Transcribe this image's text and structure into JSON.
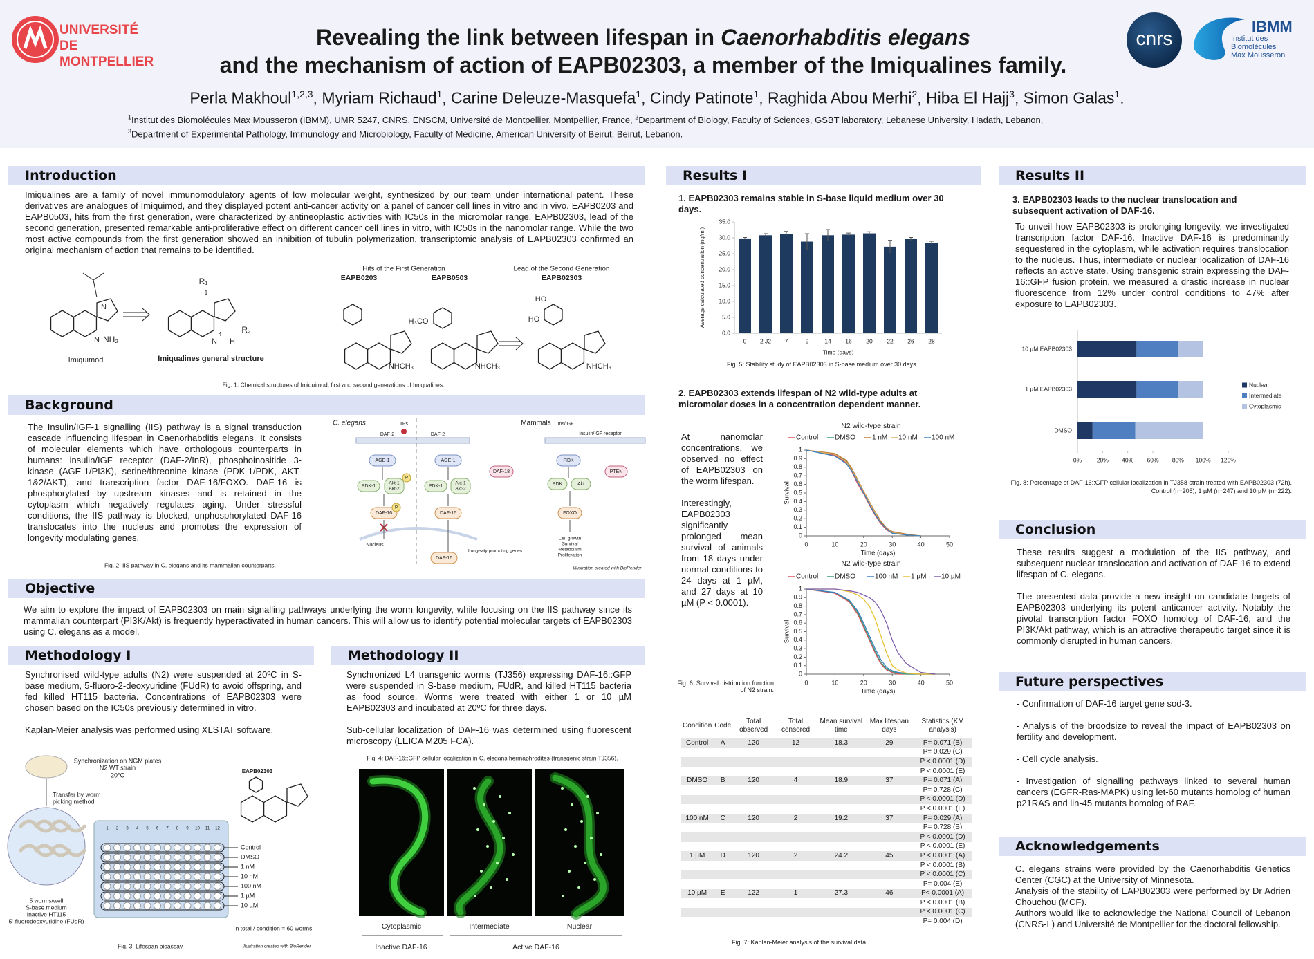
{
  "header": {
    "university": [
      "UNIVERSITÉ",
      "DE MONTPELLIER"
    ],
    "cnrs": "cnrs",
    "ibmm": "IBMM",
    "ibmm_lines": [
      "Institut des",
      "Biomolécules",
      "Max Mousseron"
    ],
    "title": {
      "line1": "Revealing the link between lifespan in",
      "line1_italic": "Caenorhabditis elegans",
      "line2": "and the mechanism of action of EAPB02303, a member of the Imiqualines family."
    },
    "authors": [
      {
        "name": "Perla Makhoul",
        "sup": "1,2,3"
      },
      {
        "name": ", Myriam Richaud",
        "sup": "1"
      },
      {
        "name": ", Carine Deleuze-Masquefa",
        "sup": "1"
      },
      {
        "name": ", Cindy Patinote",
        "sup": "1"
      },
      {
        "name": ", Raghida Abou Merhi",
        "sup": "2"
      },
      {
        "name": ", Hiba El Hajj",
        "sup": "3"
      },
      {
        "name": ", Simon Galas",
        "sup": "1"
      }
    ],
    "authors_end": ".",
    "affiliations": [
      {
        "sup": "1",
        "text": "Institut des Biomolécules Max Mousseron (IBMM), UMR 5247, CNRS, ENSCM, Université de Montpellier, Montpellier, France, "
      },
      {
        "sup": "2",
        "text": "Department of Biology, Faculty of Sciences, GSBT laboratory, Lebanese University, Hadath, Lebanon,"
      },
      {
        "sup": "3",
        "text": "Department of Experimental Pathology, Immunology and Microbiology, Faculty of Medicine, American University of Beirut, Beirut, Lebanon."
      }
    ]
  },
  "introduction": {
    "heading": "Introduction",
    "text": "Imiqualines are a family of novel immunomodulatory agents of low molecular weight, synthesized by our team under international patent. These derivatives are analogues of Imiquimod, and they displayed potent anti-cancer activity on a panel of cancer cell lines in vitro and in vivo. EAPB0203 and EAPB0503, hits from the first generation, were characterized by antineoplastic activities with IC50s in the micromolar range. EAPB02303, lead of the second generation, presented remarkable anti-proliferative effect on different cancer cell lines in vitro, with IC50s in the nanomolar range. While the two most active compounds from the first generation showed an inhibition of tubulin polymerization, transcriptomic analysis of EAPB02303 confirmed an original mechanism of action that remains to be identified."
  },
  "fig1": {
    "imiquimod": "Imiquimod",
    "general": "Imiqualines general structure",
    "first_gen": "Hits of the First Generation",
    "second_gen": "Lead of the Second Generation",
    "compounds": [
      "EAPB0203",
      "EAPB0503",
      "EAPB02303"
    ],
    "atoms": [
      "NH₂",
      "R₁",
      "R₂",
      "NHCH₃",
      "H₃CO",
      "HO",
      "N",
      "H",
      "4",
      "1"
    ],
    "caption": "Fig. 1: Chemical structures of Imiquimod, first and second generations of Imiqualines."
  },
  "background": {
    "heading": "Background",
    "text": "The Insulin/IGF-1 signalling (IIS) pathway is a signal transduction cascade influencing lifespan in Caenorhabditis elegans. It consists of molecular elements which have orthologous counterparts in humans: insulin/IGF receptor (DAF-2/InR), phosphoinositide 3-kinase (AGE-1/PI3K), serine/threonine kinase (PDK-1/PDK, AKT-1&2/AKT), and transcription factor DAF-16/FOXO.  DAF-16 is phosphorylated by upstream kinases and is retained in the cytoplasm which negatively regulates aging. Under stressful conditions, the IIS pathway is blocked, unphosphorylated DAF-16 translocates into the nucleus and promotes the expression of longevity modulating genes."
  },
  "fig2": {
    "left": "C. elegans",
    "right": "Mammals",
    "iips": "IIPs",
    "daf2": "DAF-2",
    "insigf": "Ins/IGF",
    "receptor": "Insulin/IGF receptor",
    "age1": "AGE-1",
    "pdk1": "PDK-1",
    "akt12": [
      "Akt-1",
      "Akt-2"
    ],
    "p": "P",
    "daf16": "DAF-16",
    "daf18": "DAF-18",
    "pi3k": "PI3K",
    "pten": "PTEN",
    "pdk": "PDK",
    "akt": "Akt",
    "foxo": "FOXO",
    "nucleus": "Nucleus",
    "longevity": "Longevity promoting genes",
    "outcomes": [
      "Cell growth",
      "Survival",
      "Metabolism",
      "Proliferation"
    ],
    "credit": "Illustration created with BioRender",
    "caption": "Fig. 2:  IIS pathway in C. elegans  and its mammalian counterparts."
  },
  "objective": {
    "heading": "Objective",
    "text": "We aim to explore the impact of EAPB02303 on main signalling pathways underlying the worm longevity, while focusing on the IIS pathway since its mammalian counterpart (PI3K/Akt) is frequently hyperactivated in human cancers. This will allow us to identify potential molecular targets of EAPB02303 using C. elegans as a model."
  },
  "methodology1": {
    "heading": "Methodology I",
    "paragraphs": [
      "Synchronised wild-type adults (N2) were suspended at 20ºC in S-base medium, 5-fluoro-2-deoxyuridine (FUdR) to avoid offspring, and fed killed HT115 bacteria. Concentrations of EAPB02303 were chosen based on the IC50s previously determined in vitro.",
      "Kaplan-Meier analysis was performed using XLSTAT software."
    ]
  },
  "fig3": {
    "sync": "Synchronization on NGM plates",
    "strain": "N2 WT strain",
    "temp": "20°C",
    "transfer": [
      "Transfer by worm",
      "picking method"
    ],
    "compound": "EAPB02303",
    "conditions": [
      "Control",
      "DMSO",
      "1 nM",
      "10 nM",
      "100 nM",
      "1 µM",
      "10 µM"
    ],
    "columns": [
      "1",
      "2",
      "3",
      "4",
      "5",
      "6",
      "7",
      "8",
      "9",
      "10",
      "11",
      "12"
    ],
    "well": [
      "5 worms/well",
      "S-base medium",
      "Inactive HT115",
      "5'-fluorodeoxyuridine (FUdR)"
    ],
    "n_total": "n total / condition = 60 worms",
    "caption": "Fig. 3: Lifespan bioassay.",
    "credit": "Illustration created with BioRender"
  },
  "methodology2": {
    "heading": "Methodology II",
    "paragraphs": [
      "Synchronized L4 transgenic worms (TJ356) expressing DAF-16::GFP were suspended in S-base medium, FUdR, and killed HT115 bacteria as food source. Worms were treated with either 1 or 10 µM EAPB02303 and incubated at 20ºC for three days.",
      "Sub-cellular localization of DAF-16 was determined using fluorescent microscopy (LEICA M205 FCA)."
    ]
  },
  "fig4": {
    "caption": "Fig. 4: DAF-16::GFP cellular localization in C. elegans hermaphrodites (transgenic strain TJ356).",
    "panels": [
      "Cytoplasmic",
      "Intermediate",
      "Nuclear"
    ],
    "groups": [
      "Inactive DAF-16",
      "Active DAF-16"
    ]
  },
  "results1": {
    "heading": "Results I",
    "sub1": "1. EAPB02303 remains stable in S-base liquid medium over 30 days.",
    "caption5": "Fig. 5: Stability study of EAPB02303 in S-base medium over 30 days.",
    "sub2": "2. EAPB02303 extends lifespan of N2 wild-type adults at micromolar doses in a concentration dependent manner.",
    "paragraphs": [
      "At nanomolar concentrations, we observed no effect of EAPB02303 on the worm lifespan.",
      "Interestingly, EAPB02303 significantly prolonged mean survival of animals from 18 days under normal conditions to 24 days at 1 µM, and 27 days at 10 µM (P < 0.0001)."
    ],
    "caption6": "Fig. 6: Survival distribution function of N2 strain.",
    "caption7": "Fig. 7: Kaplan-Meier analysis of the survival data."
  },
  "fig5": {
    "type": "bar",
    "categories": [
      "0",
      "2 J2",
      "7",
      "9",
      "14",
      "16",
      "20",
      "22",
      "26",
      "28"
    ],
    "values": [
      29.8,
      30.8,
      31.2,
      28.8,
      30.8,
      31.0,
      31.4,
      27.2,
      29.6,
      28.4
    ],
    "errors": [
      0.3,
      0.5,
      0.8,
      2.5,
      1.8,
      0.5,
      0.5,
      2.0,
      0.5,
      0.5
    ],
    "color": "#1f3a5f",
    "ylim": [
      0,
      35
    ],
    "yticks": [
      {
        "value": 0,
        "label": "0.0"
      },
      {
        "value": 5,
        "label": "5.0"
      },
      {
        "value": 10,
        "label": "10.0"
      },
      {
        "value": 15,
        "label": "15.0"
      },
      {
        "value": 20,
        "label": "20.0"
      },
      {
        "value": 25,
        "label": "25.0"
      },
      {
        "value": 30,
        "label": "30.0"
      },
      {
        "value": 35,
        "label": "35.0"
      }
    ],
    "ylabel": "Average calculated concentration (ng/ml)",
    "xlabel": "Time (days)"
  },
  "fig6a": {
    "type": "line",
    "title": "N2 wild-type strain",
    "x": [
      0,
      10,
      14,
      16,
      18,
      20,
      22,
      24,
      26,
      28,
      30,
      35,
      40
    ],
    "series": [
      {
        "name": "Control",
        "color": "#e0505a",
        "values": [
          1,
          0.94,
          0.85,
          0.74,
          0.6,
          0.49,
          0.36,
          0.24,
          0.14,
          0.07,
          0.03,
          0.01,
          0
        ]
      },
      {
        "name": "DMSO",
        "color": "#3a9a7a",
        "values": [
          1,
          0.95,
          0.87,
          0.77,
          0.63,
          0.5,
          0.38,
          0.26,
          0.16,
          0.08,
          0.04,
          0.01,
          0
        ]
      },
      {
        "name": "1 nM",
        "color": "#c07830",
        "values": [
          1,
          0.96,
          0.88,
          0.78,
          0.65,
          0.52,
          0.4,
          0.28,
          0.17,
          0.09,
          0.05,
          0.02,
          0
        ]
      },
      {
        "name": "10 nM",
        "color": "#d8b060",
        "values": [
          1,
          0.95,
          0.86,
          0.76,
          0.64,
          0.51,
          0.39,
          0.27,
          0.15,
          0.08,
          0.04,
          0.01,
          0
        ]
      },
      {
        "name": "100 nM",
        "color": "#3a80c0",
        "values": [
          1,
          0.93,
          0.84,
          0.75,
          0.62,
          0.5,
          0.37,
          0.25,
          0.15,
          0.08,
          0.03,
          0.01,
          0
        ]
      }
    ],
    "xlim": [
      0,
      50
    ],
    "ylim": [
      0,
      1
    ],
    "xticks": [
      0,
      10,
      20,
      30,
      40,
      50
    ],
    "yticks": [
      0,
      0.1,
      0.2,
      0.3,
      0.4,
      0.5,
      0.6,
      0.7,
      0.8,
      0.9,
      1
    ],
    "xlabel": "Time (days)",
    "ylabel": "Survival"
  },
  "fig6b": {
    "type": "line",
    "title": "N2 wild-type strain",
    "x": [
      0,
      10,
      15,
      18,
      20,
      22,
      24,
      26,
      28,
      30,
      32,
      35,
      40,
      45
    ],
    "series": [
      {
        "name": "Control",
        "color": "#e0505a",
        "values": [
          1,
          0.95,
          0.85,
          0.7,
          0.55,
          0.4,
          0.25,
          0.12,
          0.05,
          0.02,
          0,
          0,
          0,
          0
        ]
      },
      {
        "name": "DMSO",
        "color": "#3a9a7a",
        "values": [
          1,
          0.96,
          0.86,
          0.72,
          0.57,
          0.42,
          0.27,
          0.14,
          0.06,
          0.03,
          0.01,
          0,
          0,
          0
        ]
      },
      {
        "name": "100 nM",
        "color": "#3a80c0",
        "values": [
          1,
          0.96,
          0.87,
          0.74,
          0.6,
          0.45,
          0.3,
          0.17,
          0.08,
          0.04,
          0.02,
          0.01,
          0,
          0
        ]
      },
      {
        "name": "1 µM",
        "color": "#e8c030",
        "values": [
          1,
          1,
          0.97,
          0.93,
          0.88,
          0.8,
          0.65,
          0.45,
          0.25,
          0.1,
          0.05,
          0.01,
          0,
          0
        ]
      },
      {
        "name": "10 µM",
        "color": "#8060b0",
        "values": [
          1,
          1,
          0.98,
          0.96,
          0.93,
          0.9,
          0.85,
          0.75,
          0.6,
          0.4,
          0.25,
          0.12,
          0.02,
          0
        ]
      }
    ],
    "xlim": [
      0,
      50
    ],
    "ylim": [
      0,
      1
    ],
    "xticks": [
      0,
      10,
      20,
      30,
      40,
      50
    ],
    "yticks": [
      0,
      0.1,
      0.2,
      0.3,
      0.4,
      0.5,
      0.6,
      0.7,
      0.8,
      0.9,
      1
    ],
    "xlabel": "Time (days)",
    "ylabel": "Survival"
  },
  "table": {
    "headers": [
      "Condition",
      "Code",
      "Total observed",
      "Total censored",
      "Mean survival time",
      "Max lifespan days",
      "Statistics (KM analysis)"
    ],
    "rows": [
      {
        "cells": [
          "Control",
          "A",
          "120",
          "12",
          "18.3",
          "29"
        ],
        "stats": [
          "P= 0.071 (B)",
          "P= 0.029 (C)",
          "P < 0.0001 (D)",
          "P < 0.0001 (E)"
        ]
      },
      {
        "cells": [
          "DMSO",
          "B",
          "120",
          "4",
          "18.9",
          "37"
        ],
        "stats": [
          "P= 0.071 (A)",
          "P= 0.728 (C)",
          "P < 0.0001 (D)",
          "P < 0.0001 (E)"
        ]
      },
      {
        "cells": [
          "100 nM",
          "C",
          "120",
          "2",
          "19.2",
          "37"
        ],
        "stats": [
          "P= 0.029 (A)",
          "P= 0.728 (B)",
          "P < 0.0001 (D)",
          "P < 0.0001 (E)"
        ]
      },
      {
        "cells": [
          "1 µM",
          "D",
          "120",
          "2",
          "24.2",
          "45"
        ],
        "stats": [
          "P < 0.0001 (A)",
          "P < 0.0001 (B)",
          "P < 0.0001 (C)",
          "P= 0.004 (E)"
        ]
      },
      {
        "cells": [
          "10 µM",
          "E",
          "122",
          "1",
          "27.3",
          "46"
        ],
        "stats": [
          "P< 0.0001 (A)",
          "P < 0.0001 (B)",
          "P < 0.0001 (C)",
          "P= 0.004 (D)"
        ]
      }
    ]
  },
  "results2": {
    "heading": "Results II",
    "sub": "3. EAPB02303 leads to the nuclear translocation and subsequent activation of DAF-16.",
    "text": "To unveil how EAPB02303 is prolonging longevity, we investigated transcription factor DAF-16. Inactive DAF-16 is predominantly sequestered in the cytoplasm, while activation requires translocation to the nucleus. Thus, intermediate or nuclear localization of DAF-16 reflects an active state. Using transgenic strain expressing the DAF-16::GFP fusion protein, we measured a drastic increase in nuclear fluorescence from 12% under control conditions to 47% after exposure to EAPB02303.",
    "caption8": [
      "Fig. 8: Percentage of DAF-16::GFP cellular localization in TJ358 strain treated with EAPB02303 (72h).",
      "Control (n=205), 1 µM (n=247) and 10 µM (n=222)."
    ]
  },
  "fig8": {
    "type": "stacked-bar-horizontal",
    "categories": [
      "10 µM EAPB02303",
      "1 µM EAPB02303",
      "DMSO"
    ],
    "series": [
      {
        "name": "Nuclear",
        "color": "#1f3864",
        "values": [
          47,
          47,
          12
        ]
      },
      {
        "name": "Intermediate",
        "color": "#4f7fc0",
        "values": [
          33,
          33,
          34
        ]
      },
      {
        "name": "Cytoplasmic",
        "color": "#b4c3e2",
        "values": [
          20,
          20,
          54
        ]
      }
    ],
    "xlim": [
      0,
      120
    ],
    "xticks": [
      {
        "value": 0,
        "label": "0%"
      },
      {
        "value": 20,
        "label": "20%"
      },
      {
        "value": 40,
        "label": "40%"
      },
      {
        "value": 60,
        "label": "60%"
      },
      {
        "value": 80,
        "label": "80%"
      },
      {
        "value": 100,
        "label": "100%"
      },
      {
        "value": 120,
        "label": "120%"
      }
    ],
    "legend": "right"
  },
  "conclusion": {
    "heading": "Conclusion",
    "paragraphs": [
      "These results suggest a modulation of the IIS pathway, and subsequent nuclear translocation and activation of DAF-16 to extend lifespan of C. elegans.",
      "The presented data provide a new insight on candidate targets of EAPB02303 underlying its potent anticancer activity. Notably the pivotal transcription factor FOXO homolog of DAF-16, and the PI3K/Akt pathway, which is an attractive therapeutic target since it is commonly disrupted in human cancers."
    ]
  },
  "future": {
    "heading": "Future perspectives",
    "items": [
      "- Confirmation of DAF-16 target gene sod-3.",
      "- Analysis of the broodsize to reveal the impact of EAPB02303 on fertility and development.",
      "-  Cell cycle analysis.",
      "- Investigation of signalling pathways linked to several human cancers (EGFR-Ras-MAPK) using let-60 mutants homolog of human p21RAS and lin-45 mutants homolog of RAF."
    ]
  },
  "acknowledgements": {
    "heading": "Acknowledgements",
    "lines": [
      "C. elegans strains were provided by the Caenorhabditis Genetics Center (CGC) at the University of Minnesota.",
      "Analysis of the stability of EAPB02303 were performed by Dr Adrien Chouchou (MCF).",
      "Authors would like to acknowledge the National Council of Lebanon (CNRS-L) and Université de Montpellier for the doctoral fellowship."
    ]
  }
}
